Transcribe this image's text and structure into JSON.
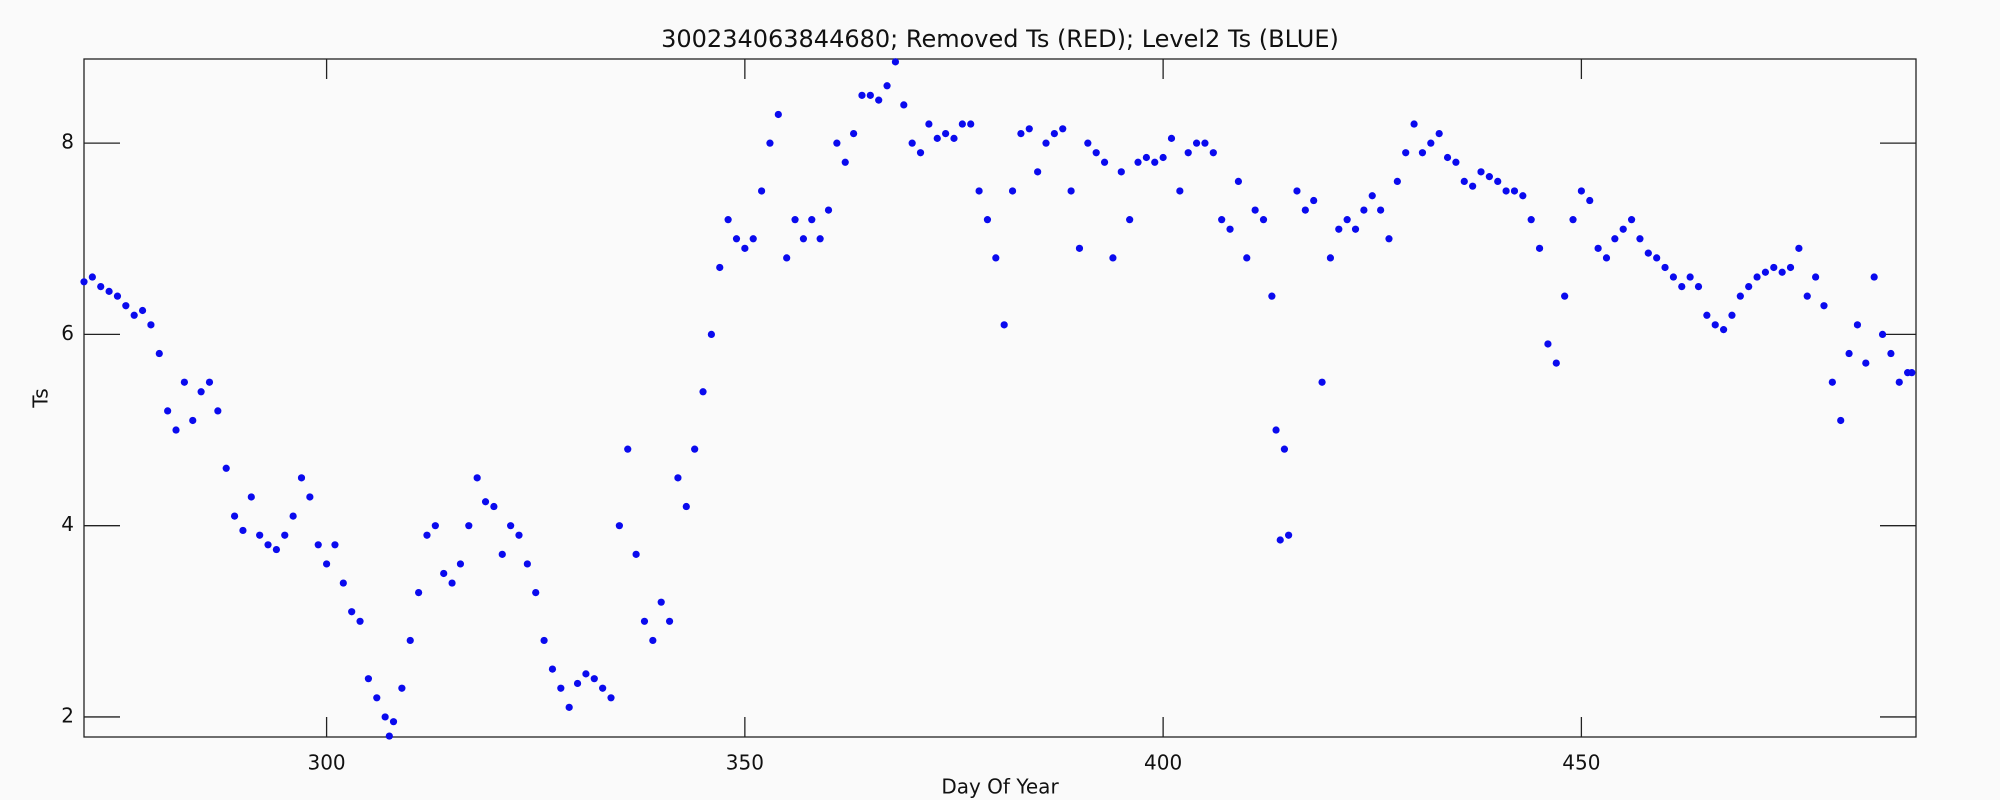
{
  "chart_data": {
    "type": "scatter",
    "title": "300234063844680; Removed Ts (RED); Level2 Ts (BLUE)",
    "x_label": "Day Of Year",
    "y_label": "Ts",
    "xlim": [
      271,
      490
    ],
    "ylim": [
      1.79,
      8.88
    ],
    "xticks": [
      300,
      350,
      400,
      450
    ],
    "yticks": [
      2,
      4,
      6,
      8
    ],
    "grid": false,
    "color": "#0a0aee",
    "x": [
      271,
      272,
      273,
      274,
      275,
      276,
      277,
      278,
      279,
      280,
      281,
      282,
      283,
      284,
      285,
      286,
      287,
      288,
      289,
      290,
      291,
      292,
      293,
      294,
      295,
      296,
      297,
      298,
      299,
      300,
      301,
      302,
      303,
      304,
      305,
      306,
      307,
      307.5,
      308,
      309,
      310,
      311,
      312,
      313,
      314,
      315,
      316,
      317,
      318,
      319,
      320,
      321,
      322,
      323,
      324,
      325,
      326,
      327,
      328,
      329,
      330,
      331,
      332,
      333,
      334,
      335,
      336,
      337,
      338,
      339,
      340,
      341,
      342,
      343,
      344,
      345,
      346,
      347,
      348,
      349,
      350,
      351,
      352,
      353,
      354,
      355,
      356,
      357,
      358,
      359,
      360,
      361,
      362,
      363,
      364,
      365,
      366,
      367,
      368,
      369,
      370,
      371,
      372,
      373,
      374,
      375,
      376,
      377,
      378,
      379,
      380,
      381,
      382,
      383,
      384,
      385,
      386,
      387,
      388,
      389,
      390,
      391,
      392,
      393,
      394,
      395,
      396,
      397,
      398,
      399,
      400,
      401,
      402,
      403,
      404,
      405,
      406,
      407,
      408,
      409,
      410,
      411,
      412,
      413,
      413.5,
      414,
      414.5,
      415,
      416,
      417,
      418,
      419,
      420,
      421,
      422,
      423,
      424,
      425,
      426,
      427,
      428,
      429,
      430,
      431,
      432,
      433,
      434,
      435,
      436,
      437,
      438,
      439,
      440,
      441,
      442,
      443,
      444,
      445,
      446,
      447,
      448,
      449,
      450,
      451,
      452,
      453,
      454,
      455,
      456,
      457,
      458,
      459,
      460,
      461,
      462,
      463,
      464,
      465,
      466,
      467,
      468,
      469,
      470,
      471,
      472,
      473,
      474,
      475,
      476,
      477,
      478,
      479,
      480,
      481,
      482,
      483,
      484,
      485,
      486,
      487,
      488,
      489,
      489.5
    ],
    "values": [
      6.55,
      6.6,
      6.5,
      6.45,
      6.4,
      6.3,
      6.2,
      6.25,
      6.1,
      5.8,
      5.2,
      5.0,
      5.5,
      5.1,
      5.4,
      5.5,
      5.2,
      4.6,
      4.1,
      3.95,
      4.3,
      3.9,
      3.8,
      3.75,
      3.9,
      4.1,
      4.5,
      4.3,
      3.8,
      3.6,
      3.8,
      3.4,
      3.1,
      3.0,
      2.4,
      2.2,
      2.0,
      1.8,
      1.95,
      2.3,
      2.8,
      3.3,
      3.9,
      4.0,
      3.5,
      3.4,
      3.6,
      4.0,
      4.5,
      4.25,
      4.2,
      3.7,
      4.0,
      3.9,
      3.6,
      3.3,
      2.8,
      2.5,
      2.3,
      2.1,
      2.35,
      2.45,
      2.4,
      2.3,
      2.2,
      4.0,
      4.8,
      3.7,
      3.0,
      2.8,
      3.2,
      3.0,
      4.5,
      4.2,
      4.8,
      5.4,
      6.0,
      6.7,
      7.2,
      7.0,
      6.9,
      7.0,
      7.5,
      8.0,
      8.3,
      6.8,
      7.2,
      7.0,
      7.2,
      7.0,
      7.3,
      8.0,
      7.8,
      8.1,
      8.5,
      8.5,
      8.45,
      8.6,
      8.85,
      8.4,
      8.0,
      7.9,
      8.2,
      8.05,
      8.1,
      8.05,
      8.2,
      8.2,
      7.5,
      7.2,
      6.8,
      6.1,
      7.5,
      8.1,
      8.15,
      7.7,
      8.0,
      8.1,
      8.15,
      7.5,
      6.9,
      8.0,
      7.9,
      7.8,
      6.8,
      7.7,
      7.2,
      7.8,
      7.85,
      7.8,
      7.85,
      8.05,
      7.5,
      7.9,
      8.0,
      8.0,
      7.9,
      7.2,
      7.1,
      7.6,
      6.8,
      7.3,
      7.2,
      6.4,
      5.0,
      3.85,
      4.8,
      3.9,
      7.5,
      7.3,
      7.4,
      5.5,
      6.8,
      7.1,
      7.2,
      7.1,
      7.3,
      7.45,
      7.3,
      7.0,
      7.6,
      7.9,
      8.2,
      7.9,
      8.0,
      8.1,
      7.85,
      7.8,
      7.6,
      7.55,
      7.7,
      7.65,
      7.6,
      7.5,
      7.5,
      7.45,
      7.2,
      6.9,
      5.9,
      5.7,
      6.4,
      7.2,
      7.5,
      7.4,
      6.9,
      6.8,
      7.0,
      7.1,
      7.2,
      7.0,
      6.85,
      6.8,
      6.7,
      6.6,
      6.5,
      6.6,
      6.5,
      6.2,
      6.1,
      6.05,
      6.2,
      6.4,
      6.5,
      6.6,
      6.65,
      6.7,
      6.65,
      6.7,
      6.9,
      6.4,
      6.6,
      6.3,
      5.5,
      5.1,
      5.8,
      6.1,
      5.7,
      6.6,
      6.0,
      5.8,
      5.5,
      5.6,
      5.6
    ]
  }
}
